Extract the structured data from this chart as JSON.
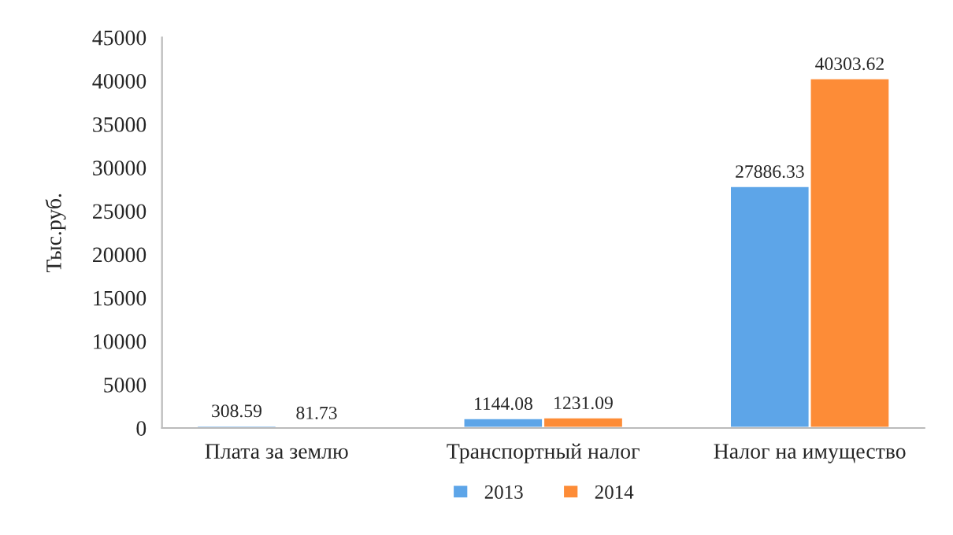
{
  "chart_data": {
    "type": "bar",
    "ylabel": "Тыс.руб.",
    "categories": [
      "Плата за землю",
      "Транспортный налог",
      "Налог на имущество"
    ],
    "series": [
      {
        "name": "2013",
        "color": "#5da5e8",
        "values": [
          308.59,
          1144.08,
          27886.33
        ]
      },
      {
        "name": "2014",
        "color": "#fd8c37",
        "values": [
          81.73,
          1231.09,
          40303.62
        ]
      }
    ],
    "ylim": [
      0,
      45000
    ],
    "yticks": [
      0,
      5000,
      10000,
      15000,
      20000,
      25000,
      30000,
      35000,
      40000,
      45000
    ],
    "data_labels": true,
    "grid": false,
    "legend": "bottom"
  }
}
